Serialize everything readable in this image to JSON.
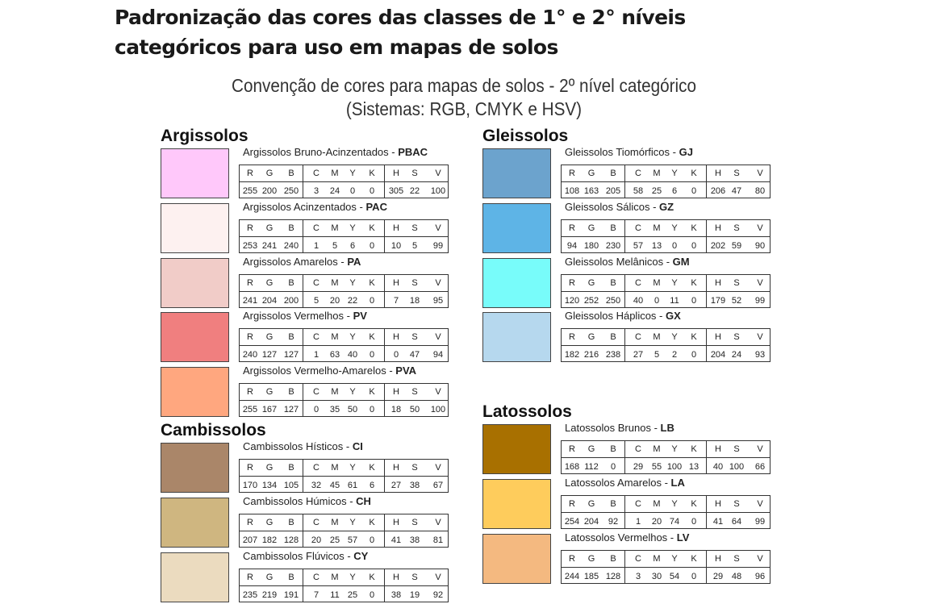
{
  "page_title": [
    "Padronização das cores das classes de 1° e 2° níveis",
    "categóricos para uso em mapas de solos"
  ],
  "subtitle": [
    "Convenção de cores para mapas de solos - 2º nível categórico",
    "(Sistemas: RGB, CMYK e HSV)"
  ],
  "headers": [
    "R",
    "G",
    "B",
    "C",
    "M",
    "Y",
    "K",
    "H",
    "S",
    "V"
  ],
  "groups": [
    {
      "title": "Argissolos",
      "entries": [
        {
          "name": "Argissolos  Bruno-Acinzentados - ",
          "code": "PBAC",
          "color": "#ffc8fa",
          "values": [
            "255",
            "200",
            "250",
            "3",
            "24",
            "0",
            "0",
            "305",
            "22",
            "100"
          ]
        },
        {
          "name": "Argissolos Acinzentados - ",
          "code": "PAC",
          "color": "#fdf1f0",
          "values": [
            "253",
            "241",
            "240",
            "1",
            "5",
            "6",
            "0",
            "10",
            "5",
            "99"
          ]
        },
        {
          "name": "Argissolos Amarelos - ",
          "code": "PA",
          "color": "#f1ccc8",
          "values": [
            "241",
            "204",
            "200",
            "5",
            "20",
            "22",
            "0",
            "7",
            "18",
            "95"
          ]
        },
        {
          "name": "Argissolos Vermelhos - ",
          "code": "PV",
          "color": "#f07f7f",
          "values": [
            "240",
            "127",
            "127",
            "1",
            "63",
            "40",
            "0",
            "0",
            "47",
            "94"
          ]
        },
        {
          "name": "Argissolos Vermelho-Amarelos - ",
          "code": "PVA",
          "color": "#ffa77f",
          "values": [
            "255",
            "167",
            "127",
            "0",
            "35",
            "50",
            "0",
            "18",
            "50",
            "100"
          ]
        }
      ]
    },
    {
      "title": "Cambissolos",
      "entries": [
        {
          "name": "Cambissolos Hísticos - ",
          "code": "CI",
          "color": "#aa8669",
          "values": [
            "170",
            "134",
            "105",
            "32",
            "45",
            "61",
            "6",
            "27",
            "38",
            "67"
          ]
        },
        {
          "name": "Cambissolos Húmicos - ",
          "code": "CH",
          "color": "#cfb680",
          "values": [
            "207",
            "182",
            "128",
            "20",
            "25",
            "57",
            "0",
            "41",
            "38",
            "81"
          ]
        },
        {
          "name": "Cambissolos Flúvicos - ",
          "code": "CY",
          "color": "#ebdbbf",
          "values": [
            "235",
            "219",
            "191",
            "7",
            "11",
            "25",
            "0",
            "38",
            "19",
            "92"
          ]
        }
      ]
    },
    {
      "title": "Gleissolos",
      "entries": [
        {
          "name": "Gleissolos Tiomórficos - ",
          "code": "GJ",
          "color": "#6ca3cd",
          "values": [
            "108",
            "163",
            "205",
            "58",
            "25",
            "6",
            "0",
            "206",
            "47",
            "80"
          ]
        },
        {
          "name": "Gleissolos Sálicos - ",
          "code": "GZ",
          "color": "#5eb4e6",
          "values": [
            "94",
            "180",
            "230",
            "57",
            "13",
            "0",
            "0",
            "202",
            "59",
            "90"
          ]
        },
        {
          "name": "Gleissolos Melânicos - ",
          "code": "GM",
          "color": "#78fcfa",
          "values": [
            "120",
            "252",
            "250",
            "40",
            "0",
            "11",
            "0",
            "179",
            "52",
            "99"
          ]
        },
        {
          "name": "Gleissolos Háplicos - ",
          "code": "GX",
          "color": "#b6d8ee",
          "values": [
            "182",
            "216",
            "238",
            "27",
            "5",
            "2",
            "0",
            "204",
            "24",
            "93"
          ]
        }
      ]
    },
    {
      "title": "Latossolos",
      "entries": [
        {
          "name": "Latossolos Brunos - ",
          "code": "LB",
          "color": "#a87000",
          "values": [
            "168",
            "112",
            "0",
            "29",
            "55",
            "100",
            "13",
            "40",
            "100",
            "66"
          ]
        },
        {
          "name": "Latossolos Amarelos -  ",
          "code": "LA",
          "color": "#fecc5c",
          "values": [
            "254",
            "204",
            "92",
            "1",
            "20",
            "74",
            "0",
            "41",
            "64",
            "99"
          ]
        },
        {
          "name": "Latossolos Vermelhos - ",
          "code": "LV",
          "color": "#f4b980",
          "values": [
            "244",
            "185",
            "128",
            "3",
            "30",
            "54",
            "0",
            "29",
            "48",
            "96"
          ]
        }
      ]
    }
  ]
}
